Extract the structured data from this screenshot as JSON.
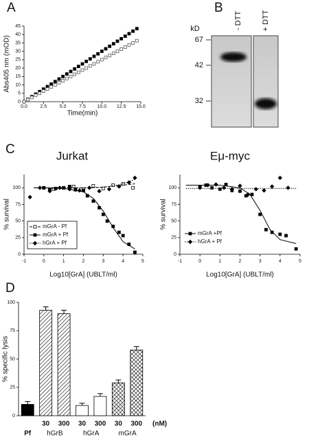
{
  "panel_labels": [
    "A",
    "B",
    "C",
    "D"
  ],
  "gel": {
    "lanes": [
      "- DTT",
      "+ DTT"
    ],
    "unit": "kD",
    "markers": [
      67,
      42,
      32
    ]
  },
  "chart_data": [
    {
      "type": "scatter",
      "xlabel": "Time(min)",
      "ylabel": "Abs405 nm (mOD)",
      "xlim": [
        0,
        15
      ],
      "xticks": [
        {
          "value": 0,
          "label": "0.0"
        },
        2.5,
        {
          "value": 5,
          "label": "5.0"
        },
        7.5,
        {
          "value": 10,
          "label": "10.0"
        },
        12.5,
        {
          "value": 15,
          "label": "15.0"
        }
      ],
      "ylim": [
        0,
        45
      ],
      "yticks": [
        0,
        5,
        10,
        15,
        20,
        25,
        30,
        35,
        40,
        45
      ],
      "x": [
        0,
        0.5,
        1,
        1.5,
        2,
        2.5,
        3,
        3.5,
        4,
        4.5,
        5,
        5.5,
        6,
        6.5,
        7,
        7.5,
        8,
        8.5,
        9,
        9.5,
        10,
        10.5,
        11,
        11.5,
        12,
        12.5,
        13,
        13.5,
        14,
        14.5
      ],
      "series": [
        {
          "marker": "square",
          "color": "#000000",
          "values": [
            0,
            1.5,
            3,
            4.5,
            6,
            7.5,
            9,
            10.5,
            12,
            13.5,
            15,
            16.5,
            18,
            19.5,
            21,
            22.5,
            24,
            25.5,
            27,
            28.5,
            30,
            31.5,
            33,
            34.5,
            36,
            37.5,
            39,
            40.5,
            42,
            43.5
          ]
        },
        {
          "marker": "square-open",
          "color": "#555555",
          "values": [
            0,
            1.3,
            2.5,
            3.8,
            5,
            6.3,
            7.5,
            8.8,
            10,
            11.3,
            12.5,
            13.8,
            15,
            16.3,
            17.5,
            18.8,
            20,
            21.3,
            22.5,
            23.8,
            25,
            26.3,
            27.5,
            28.8,
            30,
            31.3,
            32.5,
            33.8,
            35,
            36.3
          ]
        }
      ]
    },
    {
      "type": "scatter",
      "title": "Jurkat",
      "xlabel": "Log10[GrA] (UBLT/ml)",
      "ylabel": "% survival",
      "xlim": [
        -1,
        5
      ],
      "xticks": [
        -1,
        0,
        1,
        2,
        3,
        4,
        5
      ],
      "ylim": [
        0,
        120
      ],
      "yticks": [
        0,
        25,
        50,
        75,
        100
      ],
      "legend": "lower left",
      "legend_frame": true,
      "series": [
        {
          "name": "mGrA  - Pf",
          "marker": "square-open",
          "line_style": "dashed",
          "color": "#000000",
          "x": [
            0,
            0.5,
            1,
            1.5,
            2,
            2.5,
            3,
            3.5,
            4,
            4.5
          ],
          "values": [
            100,
            98,
            100,
            102,
            98,
            103,
            99,
            104,
            106,
            100
          ],
          "fit_x": [
            -0.5,
            2,
            3,
            4,
            4.6
          ],
          "fit": [
            100,
            100,
            101,
            104,
            106
          ]
        },
        {
          "name": "mGrA + Pf",
          "marker": "square",
          "line_style": "solid",
          "color": "#000000",
          "x": [
            0,
            0.3,
            0.6,
            1,
            1.3,
            1.6,
            2,
            2.2,
            2.5,
            2.8,
            3,
            3.2,
            3.5,
            3.8,
            4,
            4.3,
            4.6
          ],
          "values": [
            100,
            97,
            99,
            100,
            102,
            97,
            96,
            88,
            80,
            70,
            60,
            50,
            42,
            33,
            28,
            15,
            3
          ],
          "fit_x": [
            -0.5,
            0,
            1,
            2,
            2.5,
            3,
            3.3,
            3.5,
            4,
            4.6
          ],
          "fit": [
            100,
            100,
            99,
            94,
            84,
            65,
            50,
            40,
            19,
            8
          ]
        },
        {
          "name": "hGrA + Pf",
          "marker": "diamond",
          "line_style": "dotted",
          "color": "#000000",
          "x": [
            -0.7,
            -0.2,
            0.3,
            0.8,
            1.3,
            1.8,
            2.3,
            2.8,
            3.3,
            3.8,
            4.3,
            4.6
          ],
          "values": [
            86,
            100,
            95,
            100,
            98,
            96,
            100,
            95,
            98,
            102,
            108,
            115
          ],
          "fit_x": [
            -0.5,
            0.5,
            1.5,
            2.5,
            3,
            3.5,
            4,
            4.3,
            4.6
          ],
          "fit": [
            100,
            100,
            100,
            100,
            101,
            103,
            106,
            109,
            113
          ]
        }
      ]
    },
    {
      "type": "scatter",
      "title": "Eμ-myc",
      "xlabel": "Log10[GrA] (UBLT/ml)",
      "ylabel": "% survival",
      "xlim": [
        -1,
        5
      ],
      "xticks": [
        -1,
        0,
        1,
        2,
        3,
        4,
        5
      ],
      "ylim": [
        0,
        120
      ],
      "yticks": [
        0,
        25,
        50,
        75,
        100
      ],
      "legend": "lower left",
      "legend_frame": false,
      "series": [
        {
          "name": "mGrA +Pf",
          "marker": "square",
          "line_style": "solid",
          "color": "#000000",
          "x": [
            0,
            0.3,
            0.6,
            1,
            1.3,
            1.6,
            2,
            2.3,
            2.6,
            3,
            3.3,
            3.6,
            4,
            4.3,
            4.8
          ],
          "values": [
            102,
            104,
            100,
            98,
            105,
            96,
            95,
            88,
            90,
            60,
            37,
            33,
            30,
            28,
            8
          ],
          "fit_x": [
            -0.7,
            1,
            2,
            2.5,
            3,
            3.5,
            4,
            4.8
          ],
          "fit": [
            104,
            104,
            100,
            90,
            66,
            37,
            22,
            16
          ]
        },
        {
          "name": "hGrA + Pf",
          "marker": "diamond",
          "line_style": "dotted",
          "color": "#000000",
          "x": [
            0,
            0.4,
            0.8,
            1.2,
            1.6,
            2,
            2.4,
            2.8,
            3.2,
            3.6,
            4,
            4.4
          ],
          "values": [
            100,
            104,
            105,
            100,
            98,
            103,
            90,
            98,
            96,
            102,
            115,
            100
          ],
          "fit_x": [
            -0.7,
            4.8
          ],
          "fit": [
            99,
            99
          ]
        }
      ]
    },
    {
      "type": "bar",
      "ylabel": "% specific lysis",
      "ylim": [
        0,
        100
      ],
      "yticks": [
        0,
        25,
        50,
        75,
        100
      ],
      "categories": [
        "Pf",
        "30",
        "300",
        "30",
        "300",
        "30",
        "300"
      ],
      "group_labels": [
        "hGrB",
        "hGrA",
        "mGrA"
      ],
      "unit_label": "(nM)",
      "values": [
        10,
        93,
        90,
        9,
        17,
        29,
        58
      ],
      "errors": [
        2.5,
        3,
        3,
        2,
        2.5,
        2.5,
        3
      ],
      "fills": [
        "solid",
        "hatch",
        "hatch",
        "white",
        "white",
        "cross",
        "cross"
      ],
      "color": "#000000"
    }
  ]
}
